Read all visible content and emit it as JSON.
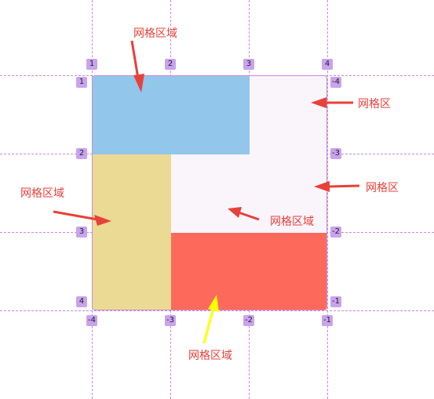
{
  "colors": {
    "area_top_blue": "#92c6ea",
    "area_left_yellow": "#ebda94",
    "area_bottom_red": "#fd6a5c",
    "grid_background": "#faf4fb",
    "grid_line": "#c98bd6",
    "badge": "#c9a3ee",
    "label_text": "#e8413a",
    "arrow_red": "#e8413a",
    "arrow_yellow": "#ffff00"
  },
  "column_numbers_top": [
    "1",
    "2",
    "3",
    "4"
  ],
  "column_numbers_bottom": [
    "-4",
    "-3",
    "-2",
    "-1"
  ],
  "row_numbers_left": [
    "1",
    "2",
    "3",
    "4"
  ],
  "row_numbers_right": [
    "-4",
    "-3",
    "-2",
    "-1"
  ],
  "labels": {
    "top": "网格区域",
    "right_upper": "网格区",
    "right_middle": "网格区",
    "left": "网格区域",
    "center": "网格区域",
    "bottom": "网格区域"
  }
}
